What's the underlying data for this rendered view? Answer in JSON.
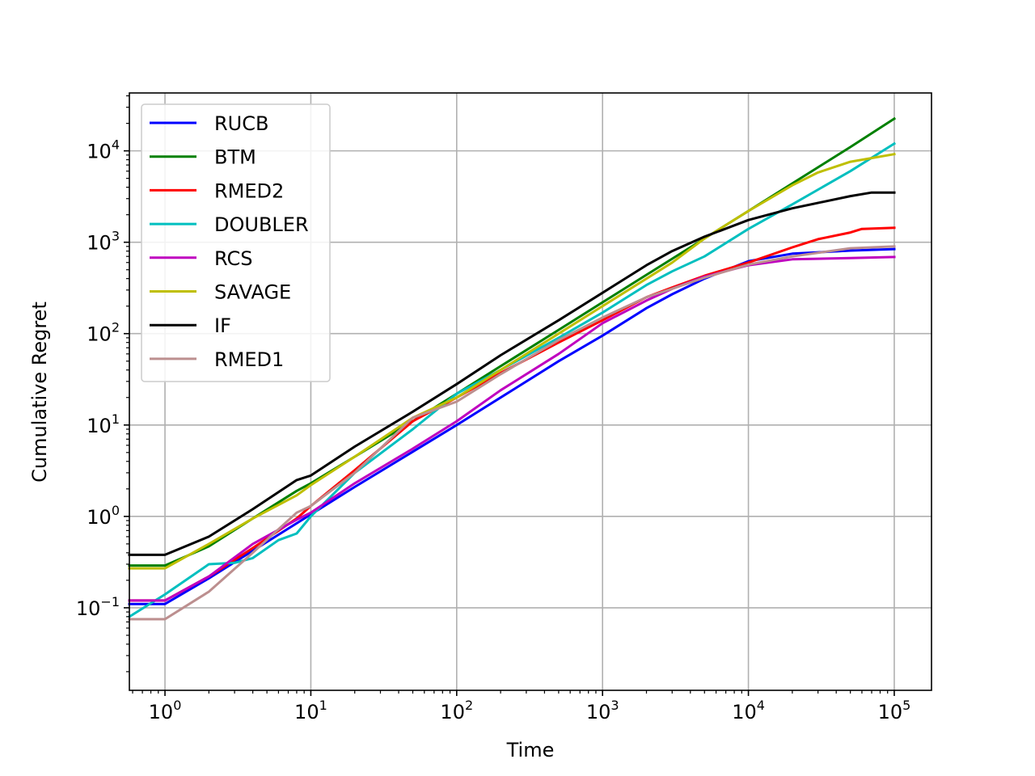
{
  "chart_data": {
    "type": "line",
    "title": "",
    "xlabel": "Time",
    "ylabel": "Cumulative Regret",
    "xscale": "log",
    "yscale": "log",
    "xlim": [
      0.57,
      180000
    ],
    "ylim": [
      0.0125,
      43000
    ],
    "grid": true,
    "legend_position": "upper-left",
    "x_ticks": [
      {
        "value": 1,
        "base": "10",
        "exp": "0"
      },
      {
        "value": 10,
        "base": "10",
        "exp": "1"
      },
      {
        "value": 100,
        "base": "10",
        "exp": "2"
      },
      {
        "value": 1000,
        "base": "10",
        "exp": "3"
      },
      {
        "value": 10000,
        "base": "10",
        "exp": "4"
      },
      {
        "value": 100000,
        "base": "10",
        "exp": "5"
      }
    ],
    "y_ticks": [
      {
        "value": 0.1,
        "base": "10",
        "exp": "−1"
      },
      {
        "value": 1,
        "base": "10",
        "exp": "0"
      },
      {
        "value": 10,
        "base": "10",
        "exp": "1"
      },
      {
        "value": 100,
        "base": "10",
        "exp": "2"
      },
      {
        "value": 1000,
        "base": "10",
        "exp": "3"
      },
      {
        "value": 10000,
        "base": "10",
        "exp": "4"
      }
    ],
    "series": [
      {
        "name": "RUCB",
        "color": "#0000ff",
        "points": [
          [
            0.57,
            0.11
          ],
          [
            1,
            0.11
          ],
          [
            2,
            0.21
          ],
          [
            4,
            0.42
          ],
          [
            8,
            0.84
          ],
          [
            10,
            1.05
          ],
          [
            20,
            2.1
          ],
          [
            50,
            5.1
          ],
          [
            100,
            10
          ],
          [
            200,
            20
          ],
          [
            500,
            50
          ],
          [
            1000,
            95
          ],
          [
            2000,
            190
          ],
          [
            3000,
            270
          ],
          [
            5000,
            400
          ],
          [
            10000,
            620
          ],
          [
            20000,
            750
          ],
          [
            50000,
            810
          ],
          [
            100000,
            840
          ]
        ]
      },
      {
        "name": "BTM",
        "color": "#008000",
        "points": [
          [
            0.57,
            0.29
          ],
          [
            1,
            0.29
          ],
          [
            2,
            0.47
          ],
          [
            4,
            0.95
          ],
          [
            8,
            1.9
          ],
          [
            10,
            2.3
          ],
          [
            20,
            4.5
          ],
          [
            50,
            11
          ],
          [
            100,
            22
          ],
          [
            200,
            44
          ],
          [
            500,
            110
          ],
          [
            1000,
            220
          ],
          [
            2000,
            440
          ],
          [
            3000,
            660
          ],
          [
            5000,
            1100
          ],
          [
            10000,
            2200
          ],
          [
            20000,
            4400
          ],
          [
            50000,
            11000
          ],
          [
            100000,
            22500
          ]
        ]
      },
      {
        "name": "RMED2",
        "color": "#ff0000",
        "points": [
          [
            0.57,
            0.12
          ],
          [
            1,
            0.12
          ],
          [
            2,
            0.22
          ],
          [
            4,
            0.45
          ],
          [
            8,
            0.95
          ],
          [
            10,
            1.3
          ],
          [
            20,
            3.2
          ],
          [
            50,
            11
          ],
          [
            100,
            20
          ],
          [
            200,
            37
          ],
          [
            500,
            80
          ],
          [
            1000,
            140
          ],
          [
            2000,
            250
          ],
          [
            3000,
            320
          ],
          [
            5000,
            430
          ],
          [
            10000,
            600
          ],
          [
            20000,
            880
          ],
          [
            30000,
            1080
          ],
          [
            50000,
            1280
          ],
          [
            60000,
            1400
          ],
          [
            100000,
            1440
          ]
        ]
      },
      {
        "name": "DOUBLER",
        "color": "#00bfbf",
        "points": [
          [
            0.57,
            0.08
          ],
          [
            1,
            0.14
          ],
          [
            2,
            0.3
          ],
          [
            3,
            0.31
          ],
          [
            4,
            0.35
          ],
          [
            6,
            0.55
          ],
          [
            8,
            0.65
          ],
          [
            10,
            1
          ],
          [
            20,
            3
          ],
          [
            50,
            9
          ],
          [
            100,
            22
          ],
          [
            200,
            40
          ],
          [
            500,
            90
          ],
          [
            1000,
            170
          ],
          [
            2000,
            340
          ],
          [
            3000,
            480
          ],
          [
            5000,
            700
          ],
          [
            10000,
            1400
          ],
          [
            20000,
            2600
          ],
          [
            50000,
            6000
          ],
          [
            100000,
            12000
          ]
        ]
      },
      {
        "name": "RCS",
        "color": "#bf00bf",
        "points": [
          [
            0.57,
            0.12
          ],
          [
            1,
            0.12
          ],
          [
            2,
            0.22
          ],
          [
            4,
            0.5
          ],
          [
            8,
            0.92
          ],
          [
            10,
            1.1
          ],
          [
            20,
            2.3
          ],
          [
            50,
            5.5
          ],
          [
            100,
            11
          ],
          [
            200,
            24
          ],
          [
            500,
            60
          ],
          [
            1000,
            130
          ],
          [
            2000,
            230
          ],
          [
            3000,
            310
          ],
          [
            5000,
            420
          ],
          [
            10000,
            560
          ],
          [
            20000,
            650
          ],
          [
            50000,
            670
          ],
          [
            100000,
            690
          ]
        ]
      },
      {
        "name": "SAVAGE",
        "color": "#bfbf00",
        "points": [
          [
            0.57,
            0.27
          ],
          [
            1,
            0.27
          ],
          [
            2,
            0.5
          ],
          [
            4,
            0.95
          ],
          [
            8,
            1.7
          ],
          [
            10,
            2.2
          ],
          [
            20,
            4.5
          ],
          [
            50,
            12
          ],
          [
            100,
            20
          ],
          [
            200,
            40
          ],
          [
            500,
            100
          ],
          [
            1000,
            200
          ],
          [
            2000,
            400
          ],
          [
            3000,
            600
          ],
          [
            5000,
            1100
          ],
          [
            10000,
            2200
          ],
          [
            20000,
            4200
          ],
          [
            30000,
            5800
          ],
          [
            50000,
            7600
          ],
          [
            100000,
            9200
          ]
        ]
      },
      {
        "name": "IF",
        "color": "#000000",
        "points": [
          [
            0.57,
            0.38
          ],
          [
            1,
            0.38
          ],
          [
            2,
            0.6
          ],
          [
            4,
            1.2
          ],
          [
            8,
            2.5
          ],
          [
            10,
            2.8
          ],
          [
            20,
            5.8
          ],
          [
            50,
            14
          ],
          [
            100,
            28
          ],
          [
            200,
            58
          ],
          [
            500,
            140
          ],
          [
            1000,
            280
          ],
          [
            2000,
            560
          ],
          [
            3000,
            800
          ],
          [
            5000,
            1150
          ],
          [
            10000,
            1750
          ],
          [
            20000,
            2350
          ],
          [
            50000,
            3200
          ],
          [
            70000,
            3500
          ],
          [
            100000,
            3500
          ]
        ]
      },
      {
        "name": "RMED1",
        "color": "#bc8f8f",
        "points": [
          [
            0.57,
            0.075
          ],
          [
            1,
            0.075
          ],
          [
            2,
            0.15
          ],
          [
            4,
            0.4
          ],
          [
            8,
            1.1
          ],
          [
            10,
            1.3
          ],
          [
            20,
            3
          ],
          [
            50,
            12
          ],
          [
            100,
            18
          ],
          [
            200,
            36
          ],
          [
            500,
            85
          ],
          [
            1000,
            150
          ],
          [
            2000,
            250
          ],
          [
            3000,
            310
          ],
          [
            5000,
            410
          ],
          [
            10000,
            570
          ],
          [
            20000,
            700
          ],
          [
            50000,
            860
          ],
          [
            100000,
            900
          ]
        ]
      }
    ]
  }
}
